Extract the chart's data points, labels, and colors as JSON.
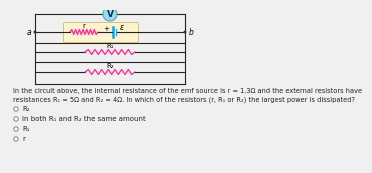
{
  "bg_color": "#f0f0f0",
  "circuit_bg": "#fdf3d0",
  "circuit_bg_edge": "#d4b86a",
  "question_text": "In the circuit above, the internal resistance of the emf source is r = 1.3Ω and the external resistors have\nresistances R₁ = 5Ω and R₂ = 4Ω. In which of the resistors (r, R₁ or R₂) the largest power is dissipated?",
  "options": [
    "R₂",
    "In both R₁ and R₂ the same amount",
    "R₁",
    "r"
  ],
  "voltmeter_label": "V",
  "label_a": "a",
  "label_b": "b",
  "label_r": "r",
  "label_eps": "ε",
  "label_R1": "R₁",
  "label_R2": "R₂",
  "wire_color": "#222222",
  "resistor_color": "#ff3399",
  "battery_color": "#00aaff",
  "voltmeter_fill": "#99ddee",
  "voltmeter_edge": "#5599aa",
  "node_color": "#333333",
  "text_color": "#222222",
  "question_fontsize": 4.8,
  "option_fontsize": 5.0
}
